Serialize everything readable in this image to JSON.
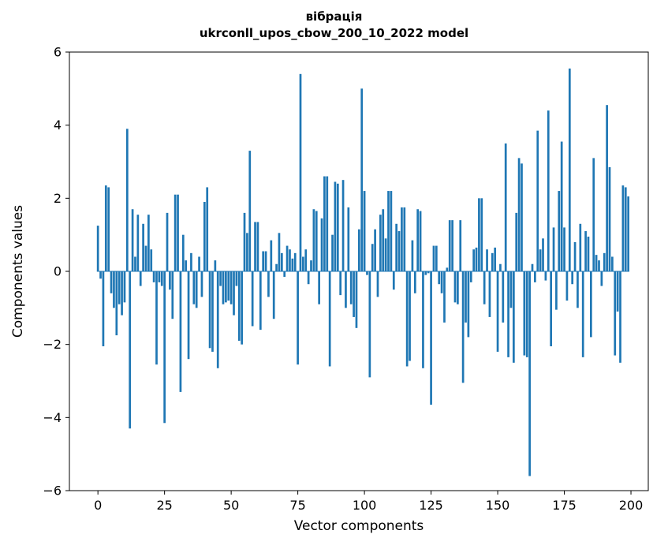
{
  "figure": {
    "background": "#ffffff"
  },
  "chart_data": {
    "type": "bar",
    "title": "вібрація",
    "subtitle": "ukrconll_upos_cbow_200_10_2022 model",
    "xlabel": "Vector components",
    "ylabel": "Components values",
    "xlim": [
      -10.7,
      206.5
    ],
    "ylim": [
      -6,
      6
    ],
    "xticks": [
      0,
      25,
      50,
      75,
      100,
      125,
      150,
      175,
      200
    ],
    "yticks": [
      -6,
      -4,
      -2,
      0,
      2,
      4,
      6
    ],
    "grid": false,
    "legend": "none",
    "bar_color": "#1f77b4",
    "axis_color": "#000000",
    "x_start": 0,
    "bar_width_data_units": 0.8,
    "values": [
      1.25,
      -0.2,
      -2.05,
      2.35,
      2.3,
      -0.6,
      -1.0,
      -1.75,
      -0.9,
      -1.2,
      -0.85,
      3.9,
      -4.3,
      1.7,
      0.4,
      1.55,
      -0.4,
      1.3,
      0.7,
      1.55,
      0.6,
      -0.3,
      -2.55,
      -0.3,
      -0.4,
      -4.15,
      1.6,
      -0.5,
      -1.3,
      2.1,
      2.1,
      -3.3,
      1.0,
      0.3,
      -2.4,
      0.5,
      -0.9,
      -1.0,
      0.4,
      -0.7,
      1.9,
      2.3,
      -2.1,
      -2.2,
      0.3,
      -2.65,
      -0.4,
      -0.9,
      -0.85,
      -0.8,
      -0.9,
      -1.2,
      -0.4,
      -1.9,
      -2.0,
      1.6,
      1.05,
      3.3,
      -1.5,
      1.35,
      1.35,
      -1.6,
      0.55,
      0.55,
      -0.7,
      0.85,
      -1.3,
      0.2,
      1.05,
      0.5,
      -0.15,
      0.7,
      0.6,
      0.35,
      0.5,
      -2.55,
      5.4,
      0.4,
      0.6,
      -0.35,
      0.3,
      1.7,
      1.65,
      -0.9,
      1.45,
      2.6,
      2.6,
      -2.6,
      1.0,
      2.45,
      2.4,
      -0.65,
      2.5,
      -1.0,
      1.75,
      -0.9,
      -1.25,
      -1.55,
      1.15,
      5.0,
      2.2,
      -0.1,
      -2.9,
      0.75,
      1.15,
      -0.7,
      1.55,
      1.7,
      0.9,
      2.2,
      2.2,
      -0.5,
      1.3,
      1.1,
      1.75,
      1.75,
      -2.6,
      -2.45,
      0.85,
      -0.6,
      1.7,
      1.65,
      -2.65,
      -0.1,
      -0.05,
      -3.65,
      0.7,
      0.7,
      -0.35,
      -0.6,
      -1.4,
      0.1,
      1.4,
      1.4,
      -0.85,
      -0.9,
      1.4,
      -3.05,
      -1.4,
      -1.8,
      -0.3,
      0.6,
      0.65,
      2.0,
      2.0,
      -0.9,
      0.6,
      -1.25,
      0.5,
      0.65,
      -2.2,
      0.2,
      -1.4,
      3.5,
      -2.35,
      -1.0,
      -2.5,
      1.6,
      3.1,
      2.95,
      -2.3,
      -2.35,
      -5.6,
      0.2,
      -0.3,
      3.85,
      0.6,
      0.9,
      -0.25,
      4.4,
      -2.05,
      1.2,
      -1.05,
      2.2,
      3.55,
      1.2,
      -0.8,
      5.55,
      -0.35,
      0.8,
      -1.0,
      1.3,
      -2.35,
      1.1,
      0.95,
      -1.8,
      3.1,
      0.45,
      0.3,
      -0.4,
      0.5,
      4.55,
      2.85,
      0.4,
      -2.3,
      -1.1,
      -2.5,
      2.35,
      2.3,
      2.05
    ]
  }
}
